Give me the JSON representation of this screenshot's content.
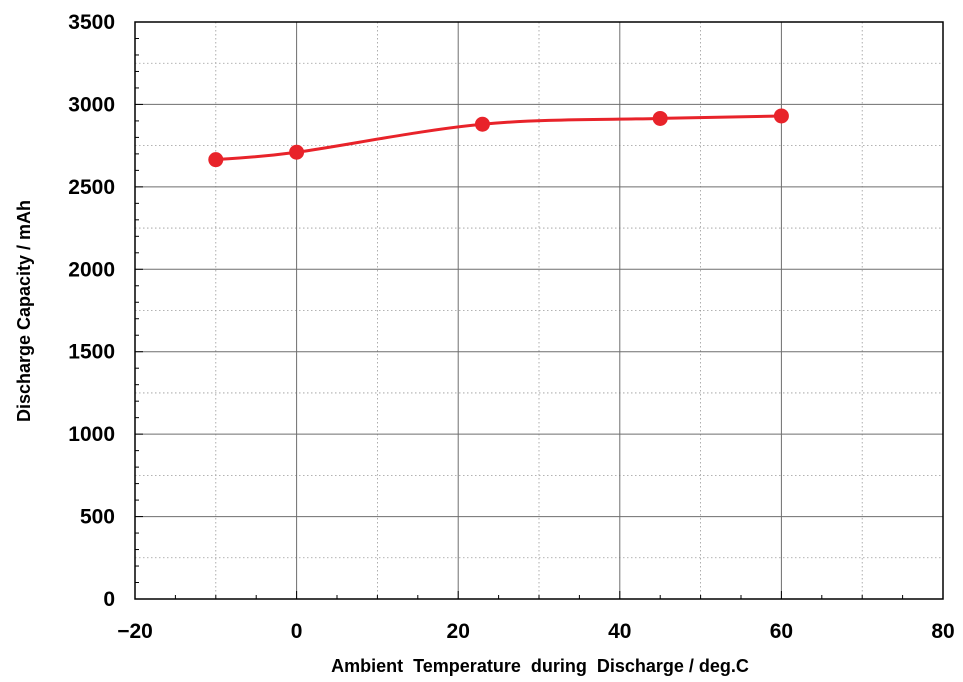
{
  "chart_data": {
    "type": "line",
    "title": "",
    "xlabel": "Ambient  Temperature  during  Discharge / deg.C",
    "ylabel": "Discharge Capacity / mAh",
    "xlim": [
      -20,
      80
    ],
    "ylim": [
      0,
      3500
    ],
    "x_ticks": [
      -20,
      0,
      20,
      40,
      60,
      80
    ],
    "y_ticks": [
      0,
      500,
      1000,
      1500,
      2000,
      2500,
      3000,
      3500
    ],
    "x_tick_labels": [
      "−20",
      "0",
      "20",
      "40",
      "60",
      "80"
    ],
    "y_tick_labels": [
      "0",
      "500",
      "1000",
      "1500",
      "2000",
      "2500",
      "3000",
      "3500"
    ],
    "grid": true,
    "series": [
      {
        "x": [
          -10,
          0,
          23,
          45,
          60
        ],
        "y": [
          2665,
          2710,
          2880,
          2915,
          2930
        ],
        "color": "#e8232a",
        "marker": "circle",
        "smooth": true
      }
    ]
  }
}
